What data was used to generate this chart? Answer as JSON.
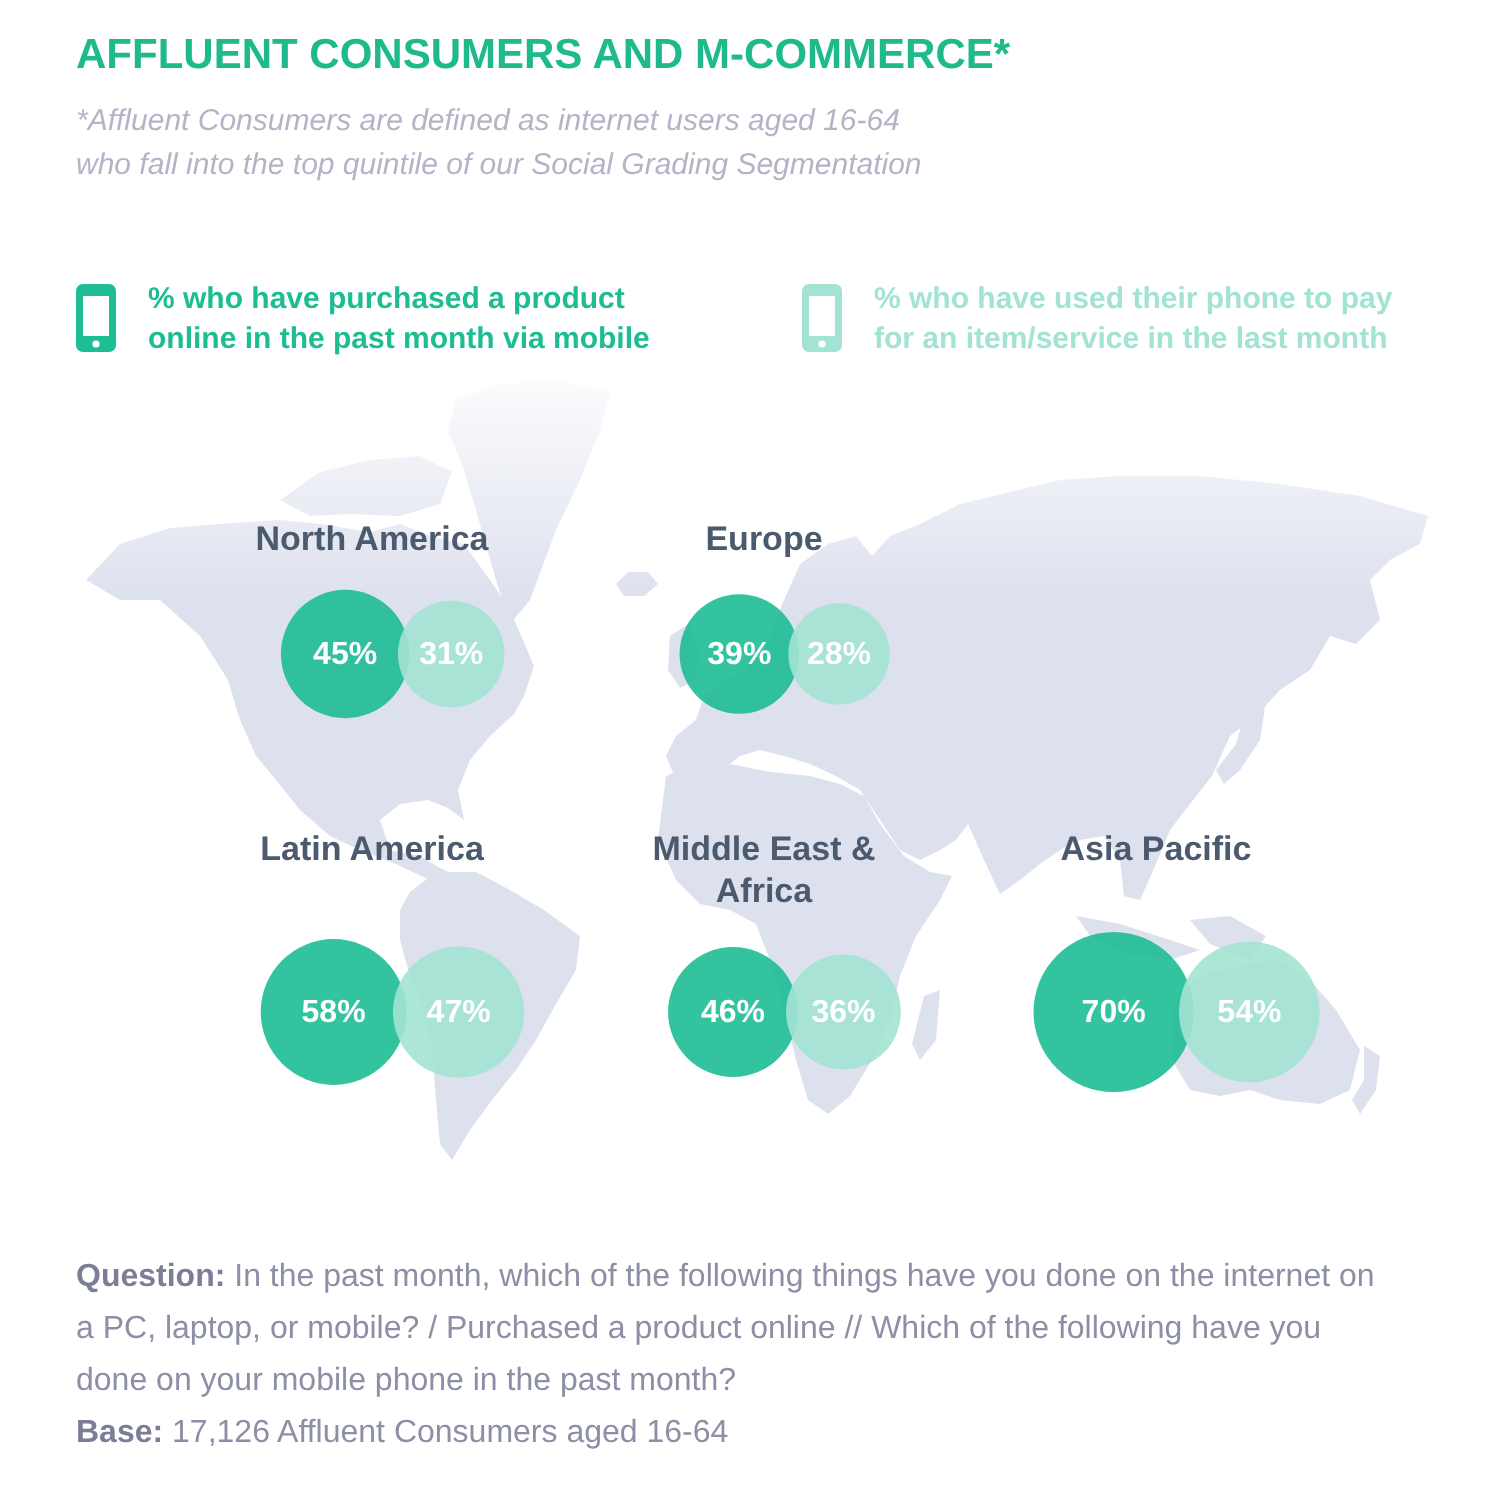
{
  "chart_data": {
    "type": "other",
    "title": "AFFLUENT CONSUMERS AND M-COMMERCE*",
    "subtitle": "*Affluent Consumers are defined as internet users aged 16-64 who fall into the top quintile of our Social Grading Segmentation",
    "categories": [
      "North America",
      "Europe",
      "Latin America",
      "Middle East & Africa",
      "Asia Pacific"
    ],
    "series": [
      {
        "name": "% who have purchased a product online in the past month via mobile",
        "color": "#1dbd93",
        "values": [
          45,
          39,
          58,
          46,
          70
        ],
        "value_labels": [
          "45%",
          "39%",
          "58%",
          "46%",
          "70%"
        ]
      },
      {
        "name": "% who have used their phone to pay for an item/service in the last month",
        "color": "#a2e3d3",
        "values": [
          31,
          28,
          47,
          36,
          54
        ],
        "value_labels": [
          "31%",
          "28%",
          "47%",
          "36%",
          "54%"
        ]
      }
    ],
    "legend": "top",
    "annotations": [
      "Question: In the past month, which of the following things have you done on the internet on a PC, laptop, or mobile? / Purchased a product online // Which of the following have you done on your mobile phone in the past month?",
      "Base: 17,126 Affluent Consumers aged 16-64"
    ]
  }
}
